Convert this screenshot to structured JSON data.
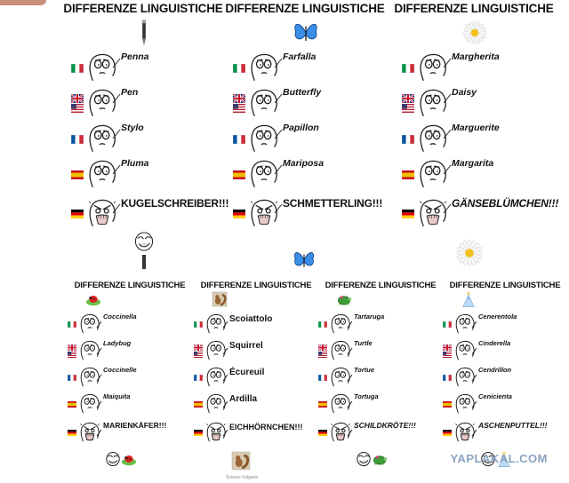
{
  "title": "DIFFERENZE LINGUISTICHE",
  "watermark": "YAPLAKAL.COM",
  "caption_under_squirrel": "Sciurus Vulgaris",
  "languages": [
    "it",
    "en",
    "fr",
    "es",
    "de"
  ],
  "panels": [
    {
      "key": "pen",
      "title": "DIFFERENZE LINGUISTICHE",
      "icon": "pen-icon",
      "words": [
        "Penna",
        "Pen",
        "Stylo",
        "Pluma",
        "KUGELSCHREIBER!!!"
      ]
    },
    {
      "key": "butterfly",
      "title": "DIFFERENZE LINGUISTICHE",
      "icon": "butterfly-icon",
      "words": [
        "Farfalla",
        "Butterfly",
        "Papillon",
        "Mariposa",
        "SCHMETTERLING!!!"
      ]
    },
    {
      "key": "daisy",
      "title": "DIFFERENZE LINGUISTICHE",
      "icon": "daisy-icon",
      "words": [
        "Margherita",
        "Daisy",
        "Marguerite",
        "Margarita",
        "GÄNSEBLÜMCHEN!!!"
      ]
    },
    {
      "key": "ladybug",
      "title": "DIFFERENZE LINGUISTICHE",
      "icon": "ladybug-icon",
      "words": [
        "Coccinella",
        "Ladybug",
        "Coccinelle",
        "Maiquita",
        "MARIENKÄFER!!!"
      ]
    },
    {
      "key": "squirrel",
      "title": "DIFFERENZE LINGUISTICHE",
      "icon": "squirrel-icon",
      "words": [
        "Scoiattolo",
        "Squirrel",
        "Écureuil",
        "Ardilla",
        "EICHHÖRNCHEN!!!"
      ]
    },
    {
      "key": "turtle",
      "title": "DIFFERENZE LINGUISTICHE",
      "icon": "turtle-icon",
      "words": [
        "Tartaruga",
        "Turtle",
        "Tortue",
        "Tortuga",
        "SCHILDKRÖTE!!!"
      ]
    },
    {
      "key": "cinderella",
      "title": "DIFFERENZE LINGUISTICHE",
      "icon": "cinderella-icon",
      "words": [
        "Cenerentola",
        "Cinderella",
        "Cendrillon",
        "Cenicienta",
        "ASCHENPUTTEL!!!"
      ]
    }
  ],
  "colors": {
    "watermark": "#8aa4c0",
    "butterfly": "#3a8ee6",
    "italy_green": "#009246",
    "italy_red": "#ce2b37",
    "france_blue": "#0055a4",
    "spain_yellow": "#f1bf00",
    "spain_red": "#c60b1e"
  }
}
